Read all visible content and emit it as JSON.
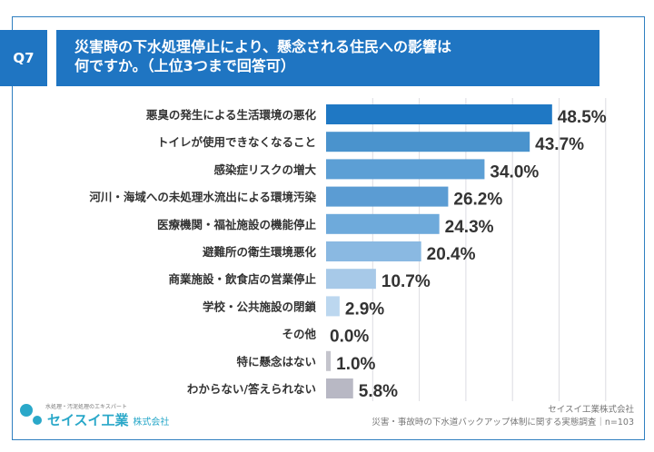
{
  "header": {
    "question_no": "Q7",
    "title_line1": "災害時の下水処理停止により、懸念される住民への影響は",
    "title_line2": "何ですか。（上位3つまで回答可）"
  },
  "chart_data": {
    "type": "bar",
    "orientation": "horizontal",
    "xlim": [
      0,
      60
    ],
    "grid": true,
    "categories": [
      "悪臭の発生による生活環境の悪化",
      "トイレが使用できなくなること",
      "感染症リスクの増大",
      "河川・海域への未処理水流出による環境汚染",
      "医療機関・福祉施設の機能停止",
      "避難所の衛生環境悪化",
      "商業施設・飲食店の営業停止",
      "学校・公共施設の閉鎖",
      "その他",
      "特に懸念はない",
      "わからない/答えられない"
    ],
    "values": [
      48.5,
      43.7,
      34.0,
      26.2,
      24.3,
      20.4,
      10.7,
      2.9,
      0.0,
      1.0,
      5.8
    ],
    "labels": [
      "48.5%",
      "43.7%",
      "34.0%",
      "26.2%",
      "24.3%",
      "20.4%",
      "10.7%",
      "2.9%",
      "0.0%",
      "1.0%",
      "5.8%"
    ],
    "colors": [
      "#1f78c4",
      "#4a93cd",
      "#5c9fd5",
      "#5b9cd3",
      "#6eaadb",
      "#8ab9e2",
      "#a7c9e8",
      "#bcd7ef",
      "#bcd7ef",
      "#c4c4cc",
      "#b8b8c4"
    ]
  },
  "footer": {
    "logo_tagline": "水処理・汚泥処理のエキスパート",
    "logo_name": "セイスイ工業",
    "logo_suffix": "株式会社",
    "source_company": "セイスイ工業株式会社",
    "source_survey": "災害・事故時の下水道バックアップ体制に関する実態調査｜n=103"
  }
}
